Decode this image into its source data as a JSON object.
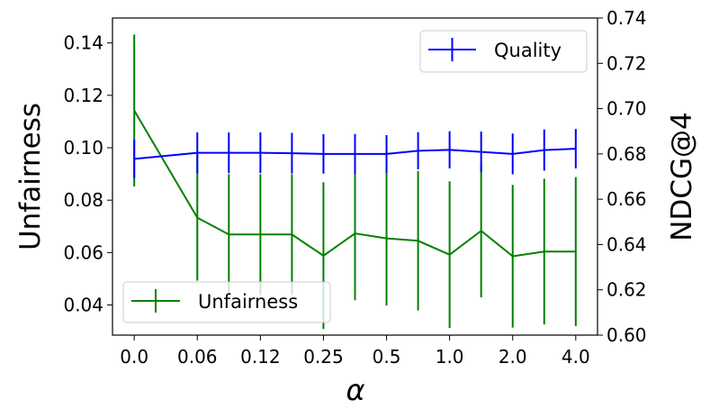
{
  "chart_data": {
    "type": "line",
    "title": "",
    "xlabel": "α",
    "ylabel_left": "Unfairness",
    "ylabel_right": "NDCG@4",
    "x_positions": [
      0,
      2,
      3,
      4,
      5,
      6,
      7,
      8,
      9,
      10,
      11,
      12,
      13,
      14
    ],
    "x_ticks": [
      0,
      2,
      4,
      6,
      8,
      10,
      12,
      14
    ],
    "x_tick_labels": [
      "0.0",
      "0.06",
      "0.12",
      "0.25",
      "0.5",
      "1.0",
      "2.0",
      "4.0"
    ],
    "xlim": [
      -0.69,
      14.69
    ],
    "ylim_left": [
      0.0285,
      0.1495
    ],
    "ylim_right": [
      0.6,
      0.74
    ],
    "y_ticks_left": [
      "0.04",
      "0.06",
      "0.08",
      "0.10",
      "0.12",
      "0.14"
    ],
    "y_ticks_right": [
      "0.60",
      "0.62",
      "0.64",
      "0.66",
      "0.68",
      "0.70",
      "0.72",
      "0.74"
    ],
    "grid": false,
    "series": [
      {
        "name": "Unfairness",
        "axis": "left",
        "color": "#008000",
        "values": [
          0.1142,
          0.0733,
          0.0669,
          0.0669,
          0.0669,
          0.0588,
          0.0673,
          0.0654,
          0.0645,
          0.0592,
          0.0683,
          0.0586,
          0.0604,
          0.0604
        ],
        "errors": [
          0.029,
          0.024,
          0.023,
          0.023,
          0.023,
          0.028,
          0.0255,
          0.0256,
          0.0266,
          0.028,
          0.0254,
          0.0272,
          0.0278,
          0.0284
        ],
        "legend_position": "lower-left"
      },
      {
        "name": "Quality",
        "axis": "right",
        "color": "#0000ff",
        "values": [
          0.6778,
          0.6805,
          0.6805,
          0.6805,
          0.6803,
          0.68,
          0.68,
          0.68,
          0.6814,
          0.6818,
          0.6809,
          0.68,
          0.6817,
          0.6823
        ],
        "errors": [
          0.0085,
          0.009,
          0.009,
          0.009,
          0.009,
          0.0087,
          0.0088,
          0.0083,
          0.0082,
          0.0082,
          0.009,
          0.009,
          0.0091,
          0.0087
        ],
        "legend_position": "upper-right"
      }
    ]
  }
}
